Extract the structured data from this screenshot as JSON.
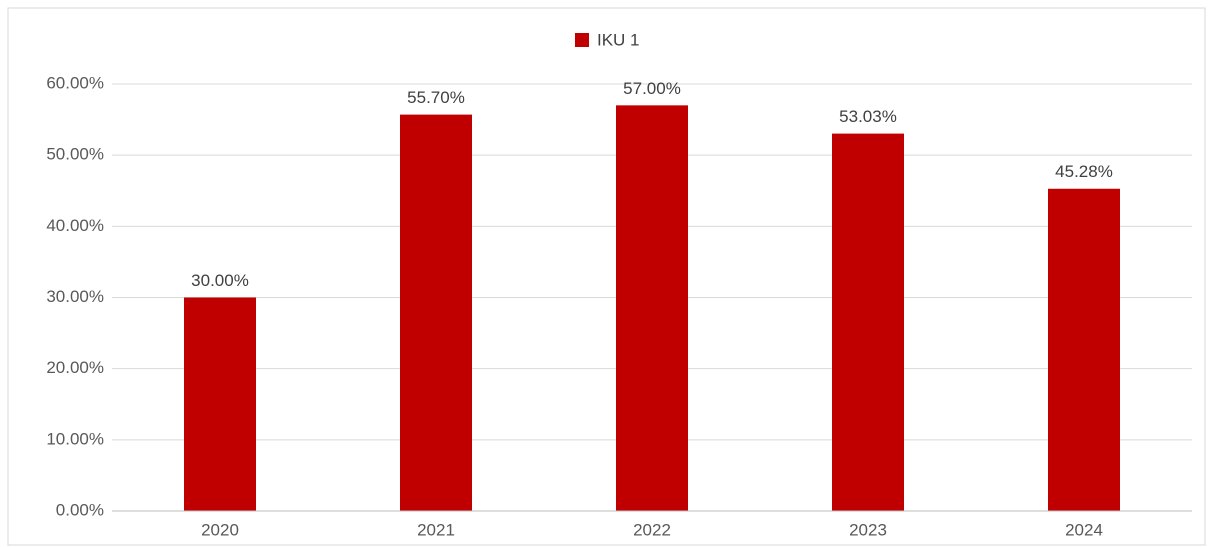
{
  "chart_data": {
    "type": "bar",
    "categories": [
      "2020",
      "2021",
      "2022",
      "2023",
      "2024"
    ],
    "series": [
      {
        "name": "IKU 1",
        "color": "#c00000",
        "values": [
          30,
          55.7,
          57,
          53.03,
          45.28
        ],
        "value_labels": [
          "30.00%",
          "55.70%",
          "57.00%",
          "53.03%",
          "45.28%"
        ]
      }
    ],
    "ylim": [
      0,
      60
    ],
    "yticks": [
      {
        "value": 0,
        "label": "0.00%"
      },
      {
        "value": 10,
        "label": "10.00%"
      },
      {
        "value": 20,
        "label": "20.00%"
      },
      {
        "value": 30,
        "label": "30.00%"
      },
      {
        "value": 40,
        "label": "40.00%"
      },
      {
        "value": 50,
        "label": "50.00%"
      },
      {
        "value": 60,
        "label": "60.00%"
      }
    ],
    "grid": true,
    "legend": "top"
  }
}
